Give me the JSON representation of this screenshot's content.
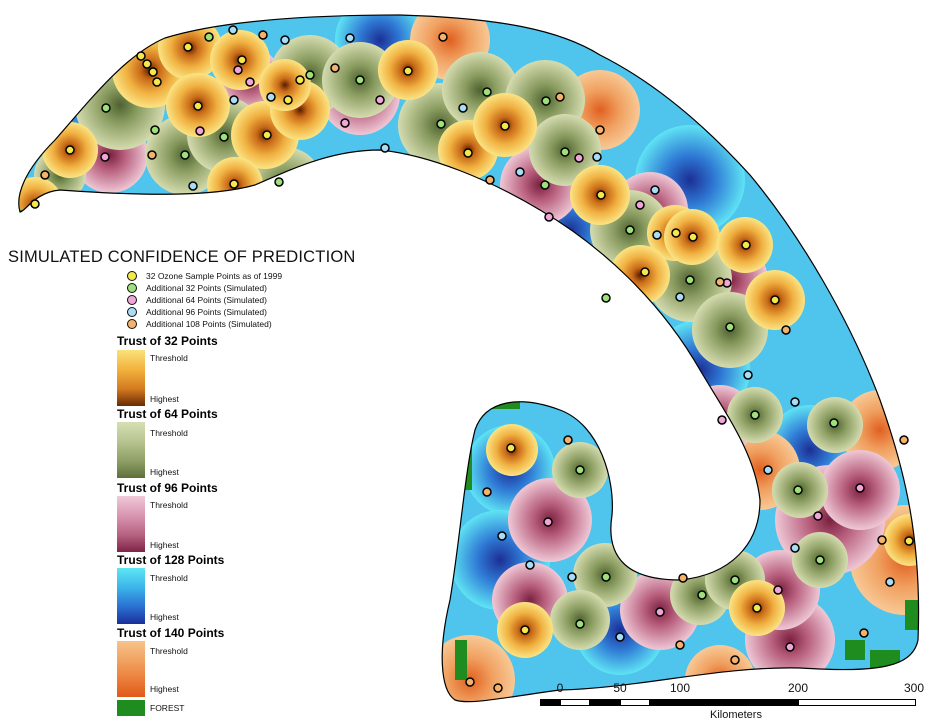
{
  "legend": {
    "title": "SIMULATED CONFIDENCE OF PREDICTION",
    "points": [
      {
        "label": "32 Ozone Sample Points as of 1999",
        "color": "#f6e84a"
      },
      {
        "label": "Additional 32 Points (Simulated)",
        "color": "#9ee07a"
      },
      {
        "label": "Additional 64 Points (Simulated)",
        "color": "#f2a6d8"
      },
      {
        "label": "Additional 96 Points (Simulated)",
        "color": "#a9dcf5"
      },
      {
        "label": "Additional 108 Points (Simulated)",
        "color": "#f5b26a"
      }
    ],
    "trust": [
      {
        "title": "Trust of 32 Points",
        "threshold": "Threshold",
        "highest": "Highest",
        "colors": [
          "#f9e27a",
          "#f3b13c",
          "#d27a20",
          "#6a2a04"
        ]
      },
      {
        "title": "Trust of 64 Points",
        "threshold": "Threshold",
        "highest": "Highest",
        "colors": [
          "#d6dfb4",
          "#b7c48f",
          "#8e9e66",
          "#5e6f3a"
        ]
      },
      {
        "title": "Trust of 96 Points",
        "threshold": "Threshold",
        "highest": "Highest",
        "colors": [
          "#f0c9d8",
          "#d995b1",
          "#b5617f",
          "#7f2346"
        ]
      },
      {
        "title": "Trust of 128 Points",
        "threshold": "Threshold",
        "highest": "Highest",
        "colors": [
          "#5ee6f5",
          "#3bb4ea",
          "#2a6fd0",
          "#1a2f9a"
        ]
      },
      {
        "title": "Trust of 140 Points",
        "threshold": "Threshold",
        "highest": "Highest",
        "colors": [
          "#f7c38b",
          "#f2a260",
          "#ea7c38",
          "#e05a1a"
        ]
      }
    ],
    "forest_label": "FOREST",
    "forest_color": "#1e8c1e"
  },
  "scale": {
    "ticks": [
      "0",
      "50",
      "100",
      "200",
      "300"
    ],
    "units": "Kilometers"
  },
  "colors": {
    "outline": "#000000",
    "background": "#ffffff"
  }
}
